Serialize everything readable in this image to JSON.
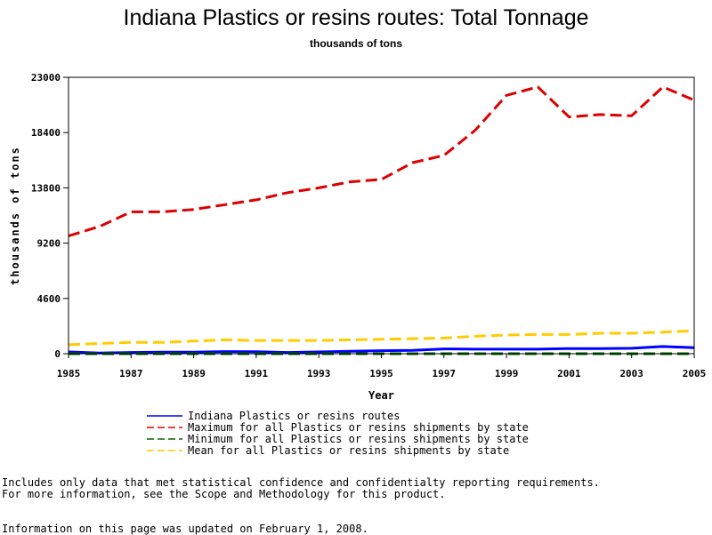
{
  "chart_data": {
    "type": "line",
    "title": "Indiana Plastics or resins routes: Total Tonnage",
    "subtitle": "thousands of tons",
    "xlabel": "Year",
    "ylabel": "thousands of tons",
    "xlim": [
      1985,
      2005
    ],
    "ylim": [
      0,
      23000
    ],
    "x_ticks": [
      "1985",
      "1987",
      "1989",
      "1991",
      "1993",
      "1995",
      "1997",
      "1999",
      "2001",
      "2003",
      "2005"
    ],
    "y_ticks": [
      "0",
      "4600",
      "9200",
      "13800",
      "18400",
      "23000"
    ],
    "grid": false,
    "legend_position": "bottom",
    "x": [
      1985,
      1986,
      1987,
      1988,
      1989,
      1990,
      1991,
      1992,
      1993,
      1994,
      1995,
      1996,
      1997,
      1998,
      1999,
      2000,
      2001,
      2002,
      2003,
      2004,
      2005
    ],
    "series": [
      {
        "name": "Indiana Plastics or resins routes",
        "color": "#0000ff",
        "style": "solid",
        "values": [
          150,
          60,
          100,
          130,
          130,
          180,
          160,
          100,
          150,
          200,
          250,
          280,
          400,
          380,
          380,
          380,
          430,
          420,
          450,
          600,
          500
        ]
      },
      {
        "name": "Maximum for all Plastics or resins shipments by state",
        "color": "#dd0000",
        "style": "dash",
        "values": [
          9800,
          10600,
          11800,
          11800,
          12000,
          12400,
          12800,
          13400,
          13800,
          14300,
          14500,
          15900,
          16500,
          18600,
          21500,
          22200,
          19700,
          19900,
          19800,
          22200,
          21100
        ]
      },
      {
        "name": "Minimum for all Plastics or resins shipments by state",
        "color": "#006600",
        "style": "dash",
        "values": [
          0,
          0,
          0,
          0,
          0,
          0,
          0,
          0,
          0,
          0,
          0,
          0,
          0,
          0,
          0,
          0,
          0,
          0,
          0,
          0,
          0
        ]
      },
      {
        "name": "Mean for all Plastics or resins shipments by state",
        "color": "#ffcc00",
        "style": "dash",
        "values": [
          750,
          850,
          950,
          950,
          1050,
          1150,
          1100,
          1100,
          1100,
          1150,
          1200,
          1250,
          1300,
          1450,
          1550,
          1600,
          1600,
          1700,
          1700,
          1800,
          1900
        ]
      }
    ]
  },
  "notes": {
    "line1": "Includes only data that met statistical confidence and confidentialty reporting requirements.",
    "line2": "For more information, see the Scope and Methodology for this product.",
    "updated": "Information on this page was updated on February 1, 2008."
  }
}
